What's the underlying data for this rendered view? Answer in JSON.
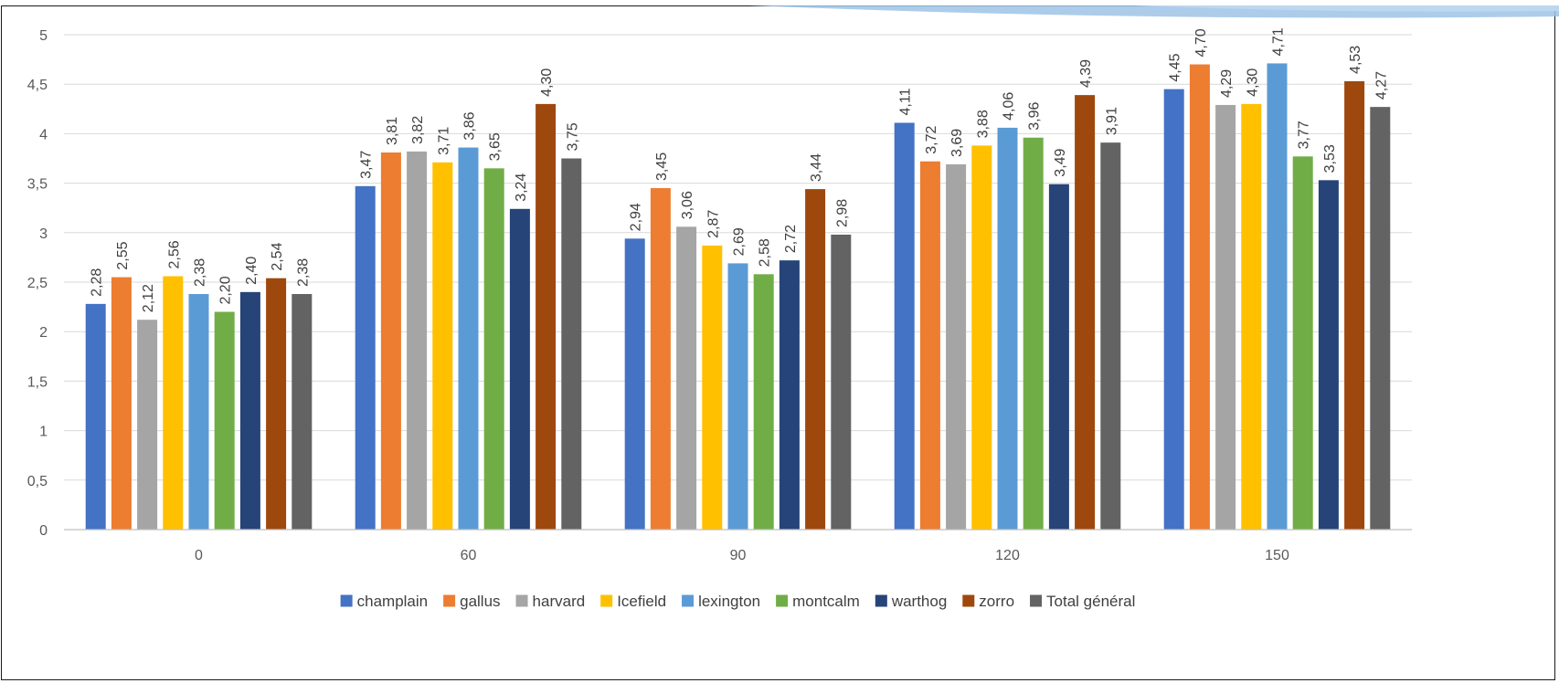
{
  "chart_data": {
    "type": "bar",
    "title": "",
    "xlabel": "",
    "ylabel": "",
    "categories": [
      "0",
      "60",
      "90",
      "120",
      "150"
    ],
    "ylim": [
      0,
      5
    ],
    "yticks": [
      "0",
      "0,5",
      "1",
      "1,5",
      "2",
      "2,5",
      "3",
      "3,5",
      "4",
      "4,5",
      "5"
    ],
    "grid": true,
    "legend_position": "bottom",
    "series": [
      {
        "name": "champlain",
        "color": "#4472C4",
        "values": [
          2.28,
          3.47,
          2.94,
          4.11,
          4.45
        ],
        "labels": [
          "2,28",
          "3,47",
          "2,94",
          "4,11",
          "4,45"
        ]
      },
      {
        "name": "gallus",
        "color": "#ED7D31",
        "values": [
          2.55,
          3.81,
          3.45,
          3.72,
          4.7
        ],
        "labels": [
          "2,55",
          "3,81",
          "3,45",
          "3,72",
          "4,70"
        ]
      },
      {
        "name": "harvard",
        "color": "#A5A5A5",
        "values": [
          2.12,
          3.82,
          3.06,
          3.69,
          4.29
        ],
        "labels": [
          "2,12",
          "3,82",
          "3,06",
          "3,69",
          "4,29"
        ]
      },
      {
        "name": "Icefield",
        "color": "#FFC000",
        "values": [
          2.56,
          3.71,
          2.87,
          3.88,
          4.3
        ],
        "labels": [
          "2,56",
          "3,71",
          "2,87",
          "3,88",
          "4,30"
        ]
      },
      {
        "name": "lexington",
        "color": "#5B9BD5",
        "values": [
          2.38,
          3.86,
          2.69,
          4.06,
          4.71
        ],
        "labels": [
          "2,38",
          "3,86",
          "2,69",
          "4,06",
          "4,71"
        ]
      },
      {
        "name": "montcalm",
        "color": "#70AD47",
        "values": [
          2.2,
          3.65,
          2.58,
          3.96,
          3.77
        ],
        "labels": [
          "2,20",
          "3,65",
          "2,58",
          "3,96",
          "3,77"
        ]
      },
      {
        "name": "warthog",
        "color": "#264478",
        "values": [
          2.4,
          3.24,
          2.72,
          3.49,
          3.53
        ],
        "labels": [
          "2,40",
          "3,24",
          "2,72",
          "3,49",
          "3,53"
        ]
      },
      {
        "name": "zorro",
        "color": "#9E480E",
        "values": [
          2.54,
          4.3,
          3.44,
          4.39,
          4.53
        ],
        "labels": [
          "2,54",
          "4,30",
          "3,44",
          "4,39",
          "4,53"
        ]
      },
      {
        "name": "Total général",
        "color": "#636363",
        "values": [
          2.38,
          3.75,
          2.98,
          3.91,
          4.27
        ],
        "labels": [
          "2,38",
          "3,75",
          "2,98",
          "3,91",
          "4,27"
        ]
      }
    ]
  },
  "colors": {
    "gridline": "#D9D9D9",
    "axis": "#BFBFBF",
    "frame": "#1A1A1A",
    "decoration_blue": "#9DC3E6"
  }
}
